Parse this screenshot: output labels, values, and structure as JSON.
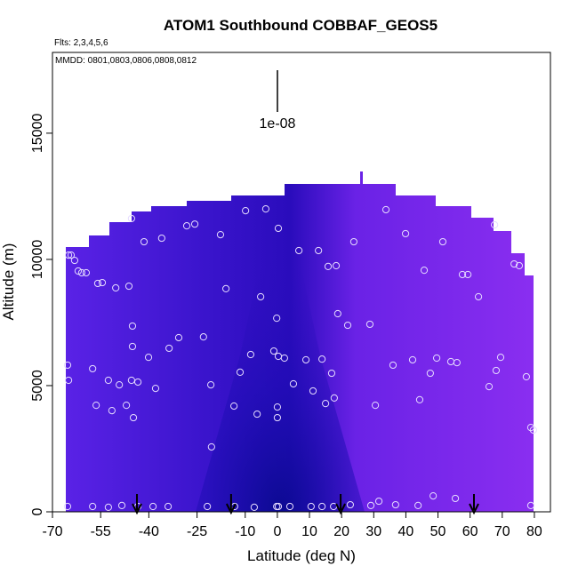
{
  "chart_data": {
    "type": "scatter",
    "title": "ATOM1 Southbound COBBAF_GEOS5",
    "flights_note": "Flts: 2,3,4,5,6",
    "dates_note": "MMDD: 0801,0803,0806,0808,0812",
    "scale_label": "1e-08",
    "x_label": "Latitude (deg N)",
    "y_label": "Altitude (m)",
    "xlim": [
      -70,
      85
    ],
    "ylim": [
      0,
      18200
    ],
    "xticks": [
      -70,
      -55,
      -40,
      -25,
      -10,
      0,
      10,
      20,
      30,
      40,
      50,
      60,
      70,
      80
    ],
    "yticks": [
      0,
      5000,
      10000,
      15000
    ],
    "marker_color": "#e6dcff",
    "arrow_color": "#000000",
    "arrow_latitudes": [
      -43.7,
      -14.4,
      19.7,
      61.2
    ],
    "x": [
      -65.0,
      -64.2,
      -63.1,
      -62.0,
      -60.9,
      -59.5,
      -55.9,
      -54.5,
      -50.3,
      -46.2,
      -45.4,
      -41.5,
      -36.0,
      -28.2,
      -25.7,
      -17.7,
      -9.9,
      -3.6,
      0.3,
      6.7,
      12.8,
      15.8,
      18.3,
      23.8,
      33.8,
      39.9,
      51.5,
      67.6,
      73.7,
      75.3,
      57.6,
      59.3,
      62.6,
      45.7,
      -16.0,
      -5.2,
      18.8,
      21.9,
      28.8,
      -0.2,
      -45.1,
      -45.1,
      -40.1,
      -33.7,
      -30.7,
      -23.0,
      -8.3,
      -1.1,
      0.3,
      2.2,
      8.9,
      13.9,
      16.9,
      11.1,
      5.0,
      -11.6,
      -20.7,
      -37.9,
      -45.4,
      -43.4,
      -52.6,
      -49.2,
      -57.5,
      -65.3,
      -65.0,
      -56.4,
      -51.5,
      -47.0,
      -44.8,
      -13.5,
      -6.3,
      0.0,
      0.0,
      15.0,
      17.7,
      30.5,
      36.0,
      42.1,
      44.3,
      47.6,
      49.6,
      54.0,
      55.9,
      65.9,
      68.1,
      69.5,
      77.5,
      78.9,
      79.7,
      -20.5,
      31.6,
      36.8,
      29.1,
      43.8,
      48.5,
      55.4,
      78.9,
      -65.3,
      -57.5,
      -52.6,
      -48.4,
      -43.4,
      -38.7,
      -34.0,
      -21.8,
      -13.3,
      -7.2,
      -0.2,
      0.3,
      3.9,
      10.5,
      13.9,
      17.5,
      22.7
    ],
    "values": [
      10170,
      10170,
      9960,
      9540,
      9470,
      9470,
      9050,
      9080,
      8870,
      8940,
      11620,
      10700,
      10840,
      11330,
      11400,
      10980,
      11930,
      12000,
      11230,
      10350,
      10350,
      9720,
      9750,
      10700,
      11970,
      11020,
      10700,
      11370,
      9820,
      9750,
      9400,
      9400,
      8520,
      9570,
      8840,
      8520,
      7850,
      7390,
      7430,
      7670,
      7360,
      6550,
      6120,
      6480,
      6900,
      6930,
      6230,
      6370,
      6160,
      6090,
      6020,
      6050,
      5490,
      4790,
      5070,
      5530,
      5030,
      4890,
      5210,
      5140,
      5210,
      5030,
      5670,
      5810,
      5210,
      4220,
      4010,
      4220,
      3730,
      4190,
      3870,
      4150,
      3730,
      4290,
      4510,
      4220,
      5810,
      6020,
      4440,
      5490,
      6090,
      5950,
      5910,
      4960,
      5600,
      6120,
      5350,
      3340,
      3240,
      2570,
      420,
      280,
      250,
      250,
      630,
      530,
      250,
      210,
      210,
      180,
      250,
      210,
      210,
      210,
      210,
      210,
      180,
      210,
      210,
      210,
      210,
      210,
      210,
      280
    ]
  }
}
